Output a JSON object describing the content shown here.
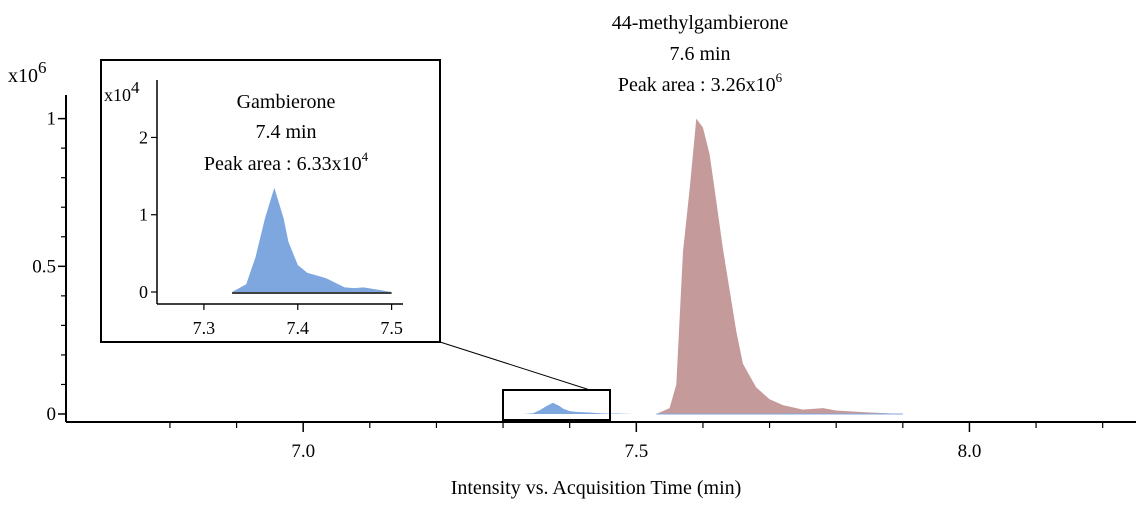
{
  "chart_data": {
    "type": "area",
    "xlabel": "Intensity vs. Acquisition Time (min)",
    "y_multiplier": {
      "base": "x10",
      "exponent": "6"
    },
    "xlim": [
      6.65,
      8.25
    ],
    "ylim": [
      0,
      1.08
    ],
    "x_ticks": [
      7.0,
      7.5,
      8.0
    ],
    "x_tick_labels": [
      "7.0",
      "7.5",
      "8.0"
    ],
    "y_ticks": [
      0,
      0.5,
      1
    ],
    "y_tick_labels": [
      "0",
      "0.5",
      "1"
    ],
    "x_minor_ticks": [
      6.8,
      6.9,
      7.1,
      7.2,
      7.3,
      7.4,
      7.6,
      7.7,
      7.8,
      7.9,
      8.1,
      8.2
    ],
    "y_minor_ticks": [
      0.1,
      0.2,
      0.3,
      0.4,
      0.6,
      0.7,
      0.8,
      0.9
    ],
    "series": [
      {
        "name": "44-methylgambierone",
        "color": "#c49a9a",
        "x": [
          7.53,
          7.55,
          7.56,
          7.57,
          7.58,
          7.59,
          7.6,
          7.61,
          7.62,
          7.63,
          7.64,
          7.65,
          7.66,
          7.68,
          7.7,
          7.72,
          7.75,
          7.78,
          7.8,
          7.85,
          7.9
        ],
        "y": [
          0.0,
          0.02,
          0.1,
          0.55,
          0.76,
          1.0,
          0.97,
          0.88,
          0.72,
          0.56,
          0.42,
          0.28,
          0.17,
          0.09,
          0.05,
          0.03,
          0.015,
          0.02,
          0.012,
          0.005,
          0.0
        ]
      },
      {
        "name": "Gambierone",
        "color": "#7fa7df",
        "x": [
          7.33,
          7.345,
          7.355,
          7.365,
          7.375,
          7.385,
          7.39,
          7.4,
          7.41,
          7.43,
          7.45,
          7.46,
          7.47,
          7.48,
          7.5
        ],
        "y": [
          0.0,
          0.1,
          0.45,
          0.95,
          1.35,
          0.95,
          0.65,
          0.35,
          0.25,
          0.18,
          0.06,
          0.05,
          0.06,
          0.04,
          0.0
        ]
      }
    ],
    "main_annotation": {
      "lines": [
        "44-methylgambierone",
        "7.6 min"
      ],
      "area_prefix": "Peak area : 3.26x10",
      "area_exponent": "6"
    },
    "inset": {
      "xlim": [
        7.25,
        7.51
      ],
      "ylim": [
        0,
        2.2
      ],
      "x_ticks": [
        7.3,
        7.4,
        7.5
      ],
      "x_tick_labels": [
        "7.3",
        "7.4",
        "7.5"
      ],
      "y_ticks": [
        0,
        1,
        2
      ],
      "y_tick_labels": [
        "0",
        "1",
        "2"
      ],
      "y_multiplier": {
        "base": "x10",
        "exponent": "4"
      },
      "annotation": {
        "lines": [
          "Gambierone",
          "7.4 min"
        ],
        "area_prefix": "Peak area : 6.33x10",
        "area_exponent": "4"
      }
    },
    "grid": false,
    "legend": "none"
  }
}
